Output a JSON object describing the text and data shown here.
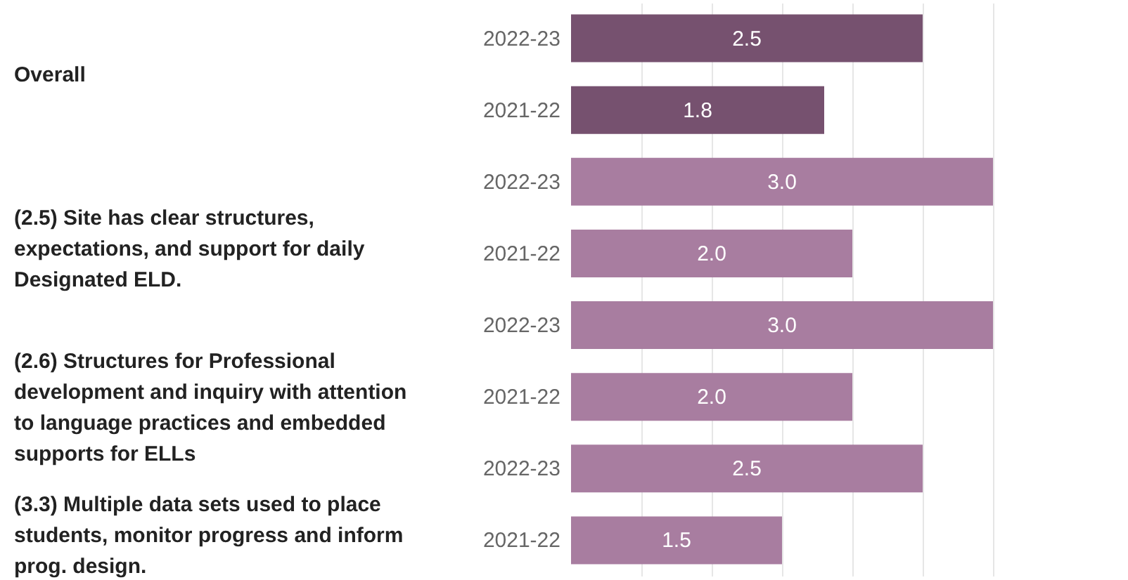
{
  "chart_data": {
    "type": "bar",
    "orientation": "horizontal",
    "categories": [
      "2022-23",
      "2021-22",
      "2022-23",
      "2021-22",
      "2022-23",
      "2021-22",
      "2022-23",
      "2021-22"
    ],
    "values": [
      2.5,
      1.8,
      3.0,
      2.0,
      3.0,
      2.0,
      2.5,
      1.5
    ],
    "colors": [
      "#76516f",
      "#76516f",
      "#a87da0",
      "#a87da0",
      "#a87da0",
      "#a87da0",
      "#a87da0",
      "#a87da0"
    ],
    "annotations": [
      "Overall",
      "(2.5) Site has clear structures, expectations, and support for daily Designated ELD.",
      "(2.6) Structures for Professional development and inquiry with attention to language practices and embedded supports for ELLs",
      "(3.3) Multiple data sets used to place students, monitor progress and inform prog. design."
    ],
    "xlim": [
      0,
      3.2
    ],
    "xticks": [
      {
        "value": 0.5,
        "label": null
      },
      {
        "value": 1.0,
        "label": null
      },
      {
        "value": 1.5,
        "label": null
      },
      {
        "value": 2.0,
        "label": null
      },
      {
        "value": 2.5,
        "label": null
      },
      {
        "value": 3.0,
        "label": null
      }
    ],
    "value_labels": [
      "2.5",
      "1.8",
      "3.0",
      "2.0",
      "3.0",
      "2.0",
      "2.5",
      "1.5"
    ],
    "grid": "x",
    "tick_labels": "y"
  }
}
